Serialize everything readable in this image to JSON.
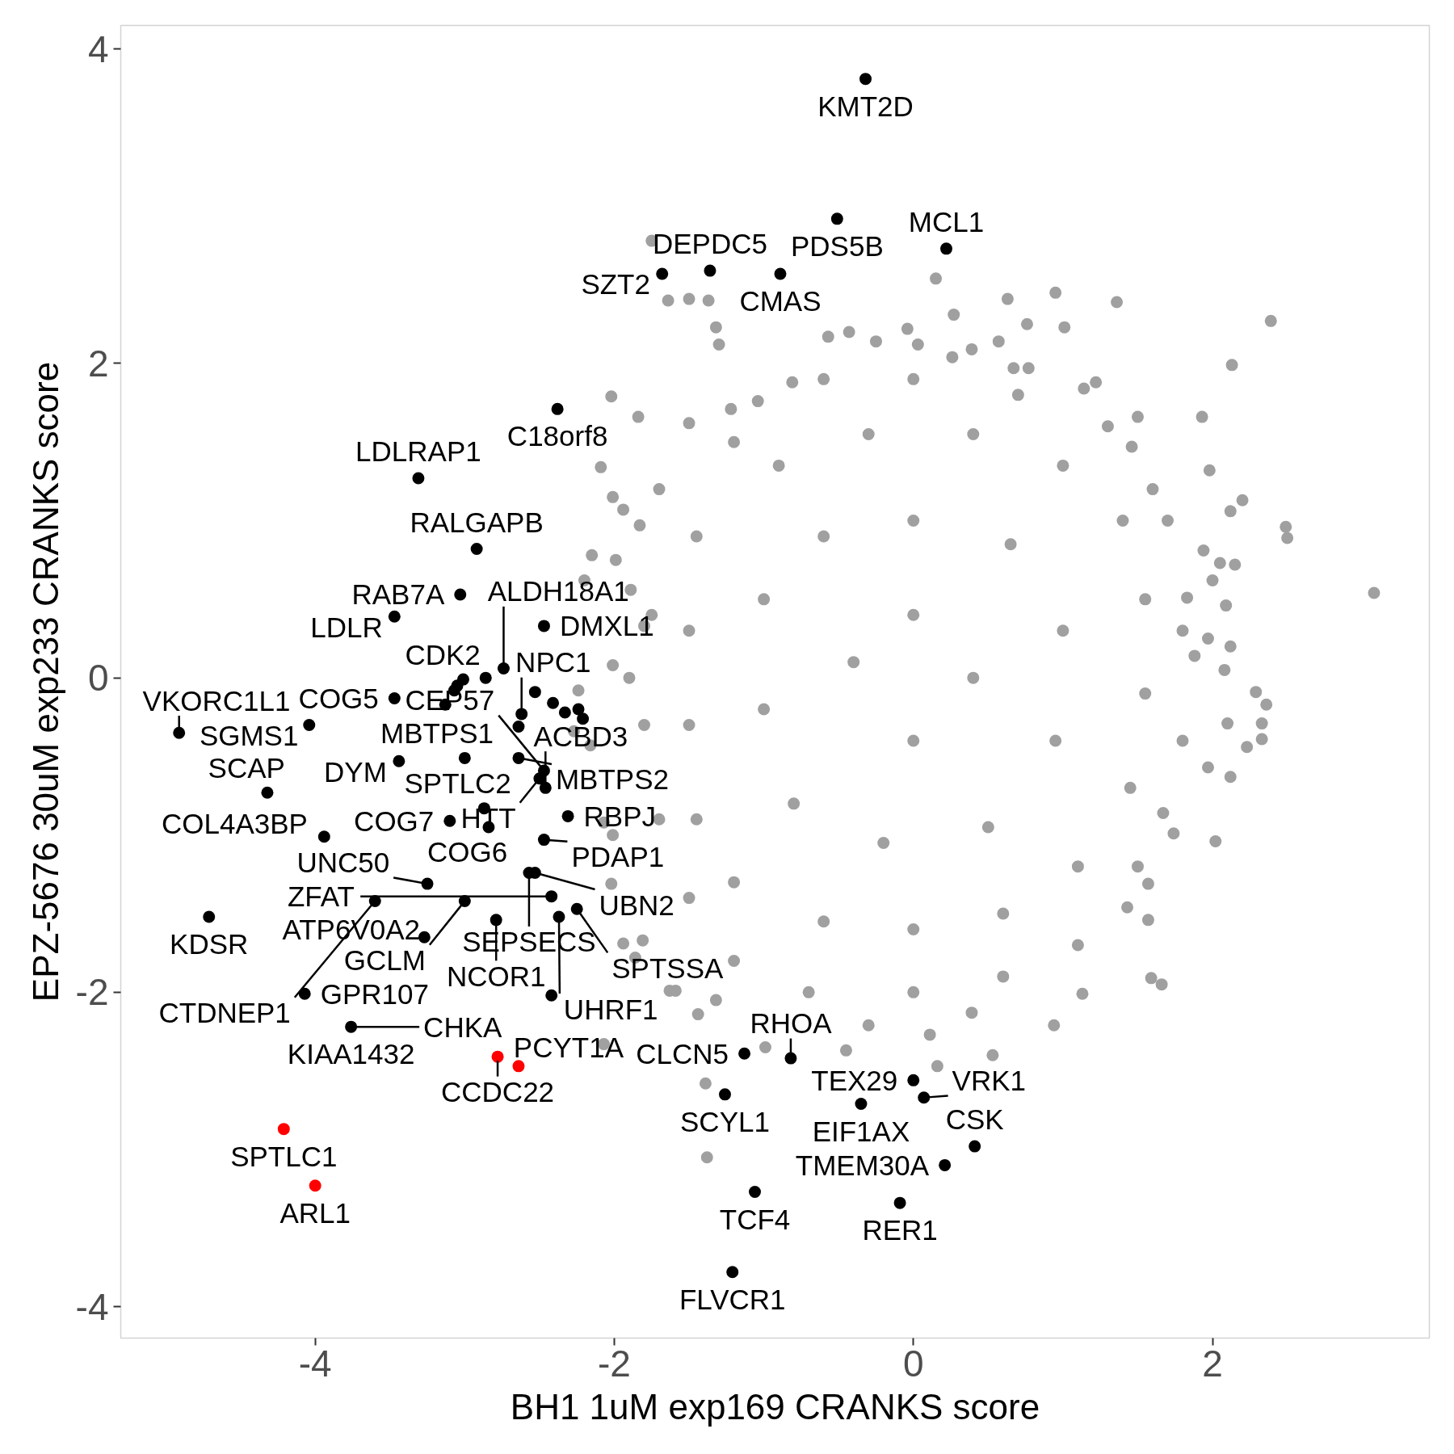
{
  "chart_data": {
    "type": "scatter",
    "xlabel": "BH1 1uM exp169 CRANKS score",
    "ylabel": "EPZ-5676 30uM exp233 CRANKS score",
    "xlim": [
      -5.3,
      3.45
    ],
    "ylim": [
      -4.2,
      4.15
    ],
    "xticks": [
      -4,
      -2,
      0,
      2
    ],
    "yticks": [
      -4,
      -2,
      0,
      2,
      4
    ],
    "marker": "circle",
    "series": [
      {
        "color": "#a0a0a0",
        "x": [
          -1.75,
          -1.64,
          -1.5,
          -1.37,
          -1.32,
          -1.3,
          0.15,
          0.27,
          0.63,
          0.95,
          1.36,
          1.01,
          0.76,
          1.5,
          -0.57,
          -0.43,
          -0.04,
          -0.25,
          0.03,
          0.39,
          0.57,
          0.67,
          0.77,
          1.14,
          1.22,
          0.26,
          -0.81,
          -1.04,
          -1.22,
          -1.84,
          -1.5,
          -2.02,
          2.39,
          2.13,
          1.93,
          1.98,
          2.2,
          2.49,
          2.5,
          3.08,
          2.12,
          1.94,
          2.05,
          2.15,
          2.0,
          2.09,
          1.97,
          2.12,
          2.08,
          2.29,
          2.36,
          2.33,
          2.33,
          2.23,
          2.1,
          2.12,
          1.97,
          2.02,
          1.74,
          1.67,
          1.57,
          1.57,
          1.43,
          1.59,
          1.66,
          1.88,
          1.83,
          1.46,
          1.6,
          -1.39,
          -1.38,
          -0.99,
          -0.45,
          0.16,
          0.53,
          0.94,
          1.13,
          -0.3,
          0.11,
          0.39,
          -1.44,
          -1.32,
          -1.59,
          -2.09,
          -2.01,
          -1.94,
          -1.83,
          -2.15,
          -1.99,
          -2.2,
          -1.89,
          -1.8,
          -2.01,
          -1.9,
          -2.24,
          -2.27,
          -2.16,
          -2.07,
          -2.01,
          -2.02,
          -1.94,
          -1.81,
          -1.86,
          -2.07,
          -1.63,
          -1.7,
          -1.75,
          -1.8,
          -1.7,
          -1.5,
          -1.2,
          -0.7,
          0.0,
          0.6,
          1.1,
          1.5,
          1.8,
          1.8,
          1.7,
          1.3,
          0.7,
          0.0,
          -0.6,
          -1.2,
          -1.45,
          -1.5,
          -1.5,
          -1.45,
          -1.2,
          -0.6,
          0.0,
          0.6,
          1.1,
          1.45,
          1.55,
          1.55,
          1.4,
          1.0,
          0.4,
          -0.3,
          -0.9,
          -1.0,
          -1.0,
          -0.8,
          -0.2,
          0.5,
          0.95,
          1.0,
          0.65,
          0.0,
          -0.6,
          -0.4,
          0.0,
          0.4,
          0.0
        ],
        "values": [
          2.78,
          2.4,
          2.41,
          2.4,
          2.23,
          2.12,
          2.54,
          2.31,
          2.41,
          2.45,
          2.39,
          2.23,
          2.25,
          1.66,
          2.17,
          2.2,
          2.22,
          2.14,
          2.12,
          2.09,
          2.14,
          1.97,
          1.97,
          1.84,
          1.88,
          2.04,
          1.88,
          1.76,
          1.71,
          1.66,
          1.62,
          1.79,
          2.27,
          1.99,
          1.66,
          1.32,
          1.13,
          0.96,
          0.89,
          0.54,
          1.06,
          0.81,
          0.73,
          0.72,
          0.62,
          0.46,
          0.25,
          0.2,
          0.05,
          -0.09,
          -0.17,
          -0.29,
          -0.39,
          -0.44,
          -0.29,
          -0.63,
          -0.57,
          -1.04,
          -0.99,
          -0.86,
          -1.31,
          -1.54,
          -1.46,
          -1.91,
          -1.95,
          0.14,
          0.51,
          1.47,
          1.2,
          -2.58,
          -3.05,
          -2.35,
          -2.37,
          -2.47,
          -2.4,
          -2.21,
          -2.01,
          -2.21,
          -2.27,
          -2.13,
          -2.14,
          -2.05,
          -1.99,
          1.34,
          1.15,
          1.07,
          0.97,
          0.78,
          0.75,
          0.62,
          0.56,
          0.33,
          0.08,
          0.0,
          -0.08,
          -0.34,
          -0.43,
          -0.92,
          -1.0,
          -1.31,
          -1.69,
          -1.67,
          -1.78,
          -2.33,
          -1.99,
          1.2,
          0.4,
          -0.3,
          -0.9,
          -1.4,
          -1.8,
          -2.0,
          -2.0,
          -1.9,
          -1.7,
          -1.2,
          -0.4,
          0.3,
          1.0,
          1.6,
          1.8,
          1.9,
          1.9,
          1.5,
          0.9,
          0.3,
          -0.3,
          -0.9,
          -1.3,
          -1.55,
          -1.6,
          -1.5,
          -1.2,
          -0.7,
          -0.1,
          0.5,
          1.0,
          1.35,
          1.55,
          1.55,
          1.35,
          0.5,
          -0.2,
          -0.8,
          -1.05,
          -0.95,
          -0.4,
          0.3,
          0.85,
          1.0,
          0.9,
          0.1,
          -0.4,
          0.0,
          0.4
        ]
      },
      {
        "color": "#000000",
        "x": [
          -0.32,
          -0.51,
          0.22,
          -1.36,
          -1.68,
          -0.89,
          -2.38,
          -3.31,
          -2.92,
          -3.03,
          -3.47,
          -2.47,
          -2.74,
          -2.86,
          -3.01,
          -3.05,
          -3.07,
          -3.13,
          -3.47,
          -2.53,
          -2.41,
          -2.33,
          -2.24,
          -2.21,
          -2.62,
          -2.64,
          -4.04,
          -4.91,
          -3.44,
          -3.0,
          -2.64,
          -2.47,
          -2.5,
          -2.46,
          -4.32,
          -2.87,
          -2.31,
          -3.1,
          -2.84,
          -3.94,
          -2.47,
          -2.57,
          -2.53,
          -3.25,
          -3.6,
          -3.0,
          -2.42,
          -2.25,
          -2.37,
          -2.79,
          -4.71,
          -3.27,
          -4.07,
          -3.76,
          -2.42,
          -1.13,
          -0.82,
          -1.26,
          -0.35,
          0.0,
          0.07,
          0.41,
          0.21,
          -1.06,
          -0.09,
          -1.21
        ],
        "values": [
          3.81,
          2.92,
          2.73,
          2.59,
          2.57,
          2.57,
          1.71,
          1.27,
          0.82,
          0.53,
          0.39,
          0.33,
          0.06,
          0.0,
          -0.01,
          -0.05,
          -0.08,
          -0.17,
          -0.13,
          -0.09,
          -0.16,
          -0.22,
          -0.2,
          -0.26,
          -0.23,
          -0.31,
          -0.3,
          -0.35,
          -0.53,
          -0.51,
          -0.51,
          -0.59,
          -0.64,
          -0.7,
          -0.73,
          -0.83,
          -0.88,
          -0.91,
          -0.95,
          -1.01,
          -1.03,
          -1.24,
          -1.24,
          -1.31,
          -1.42,
          -1.42,
          -1.39,
          -1.47,
          -1.52,
          -1.54,
          -1.52,
          -1.65,
          -2.01,
          -2.22,
          -2.02,
          -2.39,
          -2.42,
          -2.65,
          -2.71,
          -2.56,
          -2.67,
          -2.98,
          -3.1,
          -3.27,
          -3.34,
          -3.78
        ]
      },
      {
        "color": "#ff0000",
        "x": [
          -2.78,
          -2.64,
          -4.21,
          -4.0
        ],
        "values": [
          -2.41,
          -2.47,
          -2.87,
          -3.23
        ]
      }
    ],
    "annotations": [
      {
        "text": "KMT2D",
        "x": -0.32,
        "y": 3.81
      },
      {
        "text": "PDS5B",
        "x": -0.51,
        "y": 2.92
      },
      {
        "text": "DEPDC5",
        "x": -1.36,
        "y": 2.59
      },
      {
        "text": "MCL1",
        "x": 0.22,
        "y": 2.73
      },
      {
        "text": "SZT2",
        "x": -1.68,
        "y": 2.57
      },
      {
        "text": "CMAS",
        "x": -0.89,
        "y": 2.57
      },
      {
        "text": "C18orf8",
        "x": -2.38,
        "y": 1.71
      },
      {
        "text": "LDLRAP1",
        "x": -3.31,
        "y": 1.27
      },
      {
        "text": "RALGAPB",
        "x": -2.92,
        "y": 0.82
      },
      {
        "text": "RAB7A",
        "x": -3.03,
        "y": 0.53
      },
      {
        "text": "LDLR",
        "x": -3.47,
        "y": 0.39
      },
      {
        "text": "DMXL1",
        "x": -2.47,
        "y": 0.33
      },
      {
        "text": "SGMS1",
        "x": -4.04,
        "y": -0.3
      },
      {
        "text": "COG5",
        "x": -3.47,
        "y": -0.13
      },
      {
        "text": "CDK2",
        "x": -3.01,
        "y": -0.01
      },
      {
        "text": "ALDH18A1",
        "x": -2.74,
        "y": 0.06
      },
      {
        "text": "VKORC1L1",
        "x": -4.91,
        "y": -0.35
      },
      {
        "text": "MBTPS2",
        "x": -2.64,
        "y": -0.51
      },
      {
        "text": "NPC1",
        "x": -2.62,
        "y": -0.23
      },
      {
        "text": "CEP57",
        "x": -2.47,
        "y": -0.59
      },
      {
        "text": "DYM",
        "x": -3.44,
        "y": -0.53
      },
      {
        "text": "MBTPS1",
        "x": -3.0,
        "y": -0.51
      },
      {
        "text": "HTT",
        "x": -2.5,
        "y": -0.64
      },
      {
        "text": "SCAP",
        "x": -4.32,
        "y": -0.73
      },
      {
        "text": "COG7",
        "x": -3.1,
        "y": -0.91
      },
      {
        "text": "SPTLC2",
        "x": -2.87,
        "y": -0.83
      },
      {
        "text": "ACBD3",
        "x": -2.46,
        "y": -0.7
      },
      {
        "text": "RBPJ",
        "x": -2.31,
        "y": -0.88
      },
      {
        "text": "COL4A3BP",
        "x": -3.94,
        "y": -1.01
      },
      {
        "text": "COG6",
        "x": -2.84,
        "y": -0.95
      },
      {
        "text": "SEPSECS",
        "x": -2.57,
        "y": -1.24
      },
      {
        "text": "PDAP1",
        "x": -2.47,
        "y": -1.03
      },
      {
        "text": "KDSR",
        "x": -4.71,
        "y": -1.52
      },
      {
        "text": "UNC50",
        "x": -3.25,
        "y": -1.31
      },
      {
        "text": "ZFAT",
        "x": -2.42,
        "y": -1.39
      },
      {
        "text": "CTDNEP1",
        "x": -3.6,
        "y": -1.42
      },
      {
        "text": "GCLM",
        "x": -3.0,
        "y": -1.42
      },
      {
        "text": "SPTSSA",
        "x": -2.25,
        "y": -1.47
      },
      {
        "text": "UBN2",
        "x": -2.53,
        "y": -1.24
      },
      {
        "text": "ATP6V0A2",
        "x": -3.27,
        "y": -1.65
      },
      {
        "text": "NCOR1",
        "x": -2.79,
        "y": -1.54
      },
      {
        "text": "UHRF1",
        "x": -2.37,
        "y": -1.52
      },
      {
        "text": "GPR107",
        "x": -4.07,
        "y": -2.01
      },
      {
        "text": "KIAA1432",
        "x": -3.76,
        "y": -2.22
      },
      {
        "text": "CCDC22",
        "x": -2.78,
        "y": -2.41
      },
      {
        "text": "CHKA",
        "x": -3.76,
        "y": -2.22
      },
      {
        "text": "PCYT1A",
        "x": -2.64,
        "y": -2.47
      },
      {
        "text": "SPTLC1",
        "x": -4.21,
        "y": -2.87
      },
      {
        "text": "ARL1",
        "x": -4.0,
        "y": -3.23
      },
      {
        "text": "CLCN5",
        "x": -1.13,
        "y": -2.39
      },
      {
        "text": "TEX29",
        "x": 0.0,
        "y": -2.56
      },
      {
        "text": "RHOA",
        "x": -0.82,
        "y": -2.42
      },
      {
        "text": "SCYL1",
        "x": -1.26,
        "y": -2.65
      },
      {
        "text": "EIF1AX",
        "x": -0.35,
        "y": -2.71
      },
      {
        "text": "VRK1",
        "x": 0.07,
        "y": -2.67
      },
      {
        "text": "CSK",
        "x": 0.41,
        "y": -2.98
      },
      {
        "text": "TMEM30A",
        "x": 0.21,
        "y": -3.1
      },
      {
        "text": "TCF4",
        "x": -1.06,
        "y": -3.27
      },
      {
        "text": "RER1",
        "x": -0.09,
        "y": -3.34
      },
      {
        "text": "FLVCR1",
        "x": -1.21,
        "y": -3.78
      }
    ]
  }
}
